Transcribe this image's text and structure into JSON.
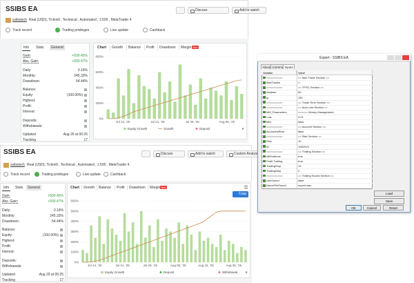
{
  "panel_top": {
    "title": "SSIBS EA",
    "buttons": [
      "Discuss",
      "Add to watch"
    ],
    "author": "ssibstech",
    "account": "Real (USD), Tickmill , Technical , Automated , 1:500 , MetaTrader 4",
    "badges": [
      "Track record",
      "Trading privileges",
      "Live update",
      "Cashback"
    ],
    "info_tabs": [
      "Info",
      "Stats",
      "General"
    ],
    "info_rows": [
      {
        "label": "Gain:",
        "value": "+500.45%"
      },
      {
        "label": "Abs. Gain:",
        "value": "+500.47%"
      },
      {
        "label": "Daily:",
        "value": "0.16%"
      },
      {
        "label": "Monthly:",
        "value": "245.33%"
      },
      {
        "label": "Drawdown:",
        "value": "54.44%"
      },
      {
        "label": "Balance:"
      },
      {
        "label": "Equity:",
        "value": "(100.00%)"
      },
      {
        "label": "Highest:"
      },
      {
        "label": "Profit:"
      },
      {
        "label": "Interest:"
      },
      {
        "label": "Deposits:"
      },
      {
        "label": "Withdrawals:"
      },
      {
        "label": "Updated",
        "value": "Aug 26 at 00:26"
      },
      {
        "label": "Tracking",
        "value": "17"
      }
    ],
    "chart_tabs": [
      "Chart",
      "Growth",
      "Balance",
      "Profit",
      "Drawdown",
      "Margin"
    ],
    "new_badge": "New",
    "chart": {
      "type": "bar",
      "ylim": [
        0,
        800
      ],
      "yticks": [
        {
          "value": 0,
          "label": "0%"
        },
        {
          "value": 200,
          "label": "200%"
        },
        {
          "value": 400,
          "label": "400%"
        },
        {
          "value": 600,
          "label": "600%"
        },
        {
          "value": 800,
          "label": "800%"
        }
      ],
      "x_labels": [
        "Jul 14, '25",
        "Jul 21, '25",
        "Jul 28, '25",
        "Aug 05, '25"
      ],
      "bars": [
        120,
        80,
        520,
        300,
        640,
        200,
        560,
        420,
        380,
        260,
        600,
        340,
        480,
        220,
        700,
        300,
        440,
        180,
        520,
        260,
        400,
        360,
        300,
        480,
        240,
        420,
        320
      ],
      "growth": [
        0,
        2,
        10,
        30,
        60,
        90,
        110,
        130,
        150,
        170,
        190,
        210,
        230,
        250,
        270,
        290,
        310,
        330,
        350,
        370,
        390,
        410,
        430,
        450,
        470,
        490,
        500
      ],
      "legend": [
        "Equity Growth",
        "Growth",
        "Deposit"
      ]
    }
  },
  "panel_bottom": {
    "title": "SSIBS EA",
    "buttons": [
      "Discuss",
      "Add to watch",
      "Custom Analysis"
    ],
    "author": "ssibstech",
    "account": "Real (USD), Tickmill , Technical , Automated , 1:500 , MetaTrader 4",
    "badges": [
      "Track record",
      "Trading privileges",
      "Live update",
      "Cashback"
    ],
    "info_tabs": [
      "Info",
      "Stats",
      "General"
    ],
    "info_rows": [
      {
        "label": "Gain:",
        "value": "+500.45%"
      },
      {
        "label": "Abs. Gain:",
        "value": "+500.47%"
      },
      {
        "label": "Daily:",
        "value": "0.16%"
      },
      {
        "label": "Monthly:",
        "value": "245.33%"
      },
      {
        "label": "Drawdown:",
        "value": "54.44%"
      },
      {
        "label": "Balance:"
      },
      {
        "label": "Equity:",
        "value": "(100.00%)"
      },
      {
        "label": "Highest:"
      },
      {
        "label": "Profit:"
      },
      {
        "label": "Interest:"
      },
      {
        "label": "Deposits:"
      },
      {
        "label": "Withdrawals:"
      },
      {
        "label": "Updated",
        "value": "Aug 29 at 05:25"
      },
      {
        "label": "Tracking",
        "value": "17"
      }
    ],
    "chart_tabs": [
      "Chart",
      "Growth",
      "Balance",
      "Profit",
      "Drawdown",
      "Margin"
    ],
    "new_badge": "New",
    "copy": "Copy",
    "chart": {
      "type": "bar",
      "ylim": [
        0,
        600
      ],
      "yticks": [
        {
          "value": 0,
          "label": "0%"
        },
        {
          "value": 100,
          "label": "100%"
        },
        {
          "value": 200,
          "label": "200%"
        },
        {
          "value": 300,
          "label": "300%"
        },
        {
          "value": 400,
          "label": "400%"
        },
        {
          "value": 500,
          "label": "500%"
        },
        {
          "value": 600,
          "label": "600%"
        }
      ],
      "x_labels": [
        "Jul 14, '25",
        "Jul 21, '25",
        "Jul 28, '25",
        "Aug 05, '25",
        "Aug 15, '25",
        "Aug 25, '25"
      ],
      "bars": [
        120,
        90,
        360,
        240,
        450,
        180,
        420,
        330,
        270,
        210,
        480,
        300,
        390,
        180,
        500,
        240,
        360,
        150,
        420,
        210,
        330,
        300,
        240,
        390,
        180,
        360,
        270,
        120,
        300,
        210,
        240,
        180,
        150,
        270,
        120,
        210,
        180,
        90,
        150,
        120
      ],
      "growth": [
        0,
        2,
        5,
        10,
        20,
        35,
        50,
        65,
        80,
        95,
        110,
        125,
        140,
        155,
        170,
        185,
        200,
        215,
        230,
        245,
        260,
        275,
        290,
        305,
        320,
        335,
        350,
        365,
        380,
        400,
        430,
        460,
        490,
        500,
        500,
        500,
        500,
        500,
        500,
        500
      ],
      "legend": [
        "Equity Growth",
        "Deposit",
        "Withdrawal"
      ]
    }
  },
  "dialog": {
    "title": "Expert - SSIBS EA",
    "tabs": [
      "About",
      "Common",
      "Inputs"
    ],
    "columns": [
      "Variable",
      "Value"
    ],
    "rows": [
      [
        "==========",
        "== Max Trade Section =="
      ],
      [
        "MaxTrades",
        "1"
      ],
      [
        "==========",
        "== TP/SL Section =="
      ],
      [
        "Abstime",
        "50"
      ],
      [
        "tp",
        "150"
      ],
      [
        "==========",
        "== Trade Time Section =="
      ],
      [
        "==========",
        "== Auto Lots Section =="
      ],
      [
        "MM_Parameters",
        "====== Money Management"
      ],
      [
        "Lots",
        "0.01"
      ],
      [
        "MM",
        "false"
      ],
      [
        "==========",
        "== Account Section =="
      ],
      [
        "AccountIsReal",
        "false"
      ],
      [
        "==========",
        "== Risk Section =="
      ],
      [
        "Risk",
        "10"
      ],
      [
        "ID",
        "1082019"
      ],
      [
        "==========",
        "== Trailing Section =="
      ],
      [
        "AllPositions",
        "true"
      ],
      [
        "Profit Trailing",
        "true"
      ],
      [
        "TrailingStop",
        "15"
      ],
      [
        "TrailingStep",
        "2"
      ],
      [
        "==========",
        "== Trailing Sound Section =="
      ],
      [
        "UseSound",
        "false"
      ],
      [
        "NameFileSound",
        "expert.wav"
      ]
    ],
    "side_buttons": [
      "Load",
      "Save"
    ],
    "buttons": [
      "OK",
      "Cancel",
      "Reset"
    ]
  }
}
